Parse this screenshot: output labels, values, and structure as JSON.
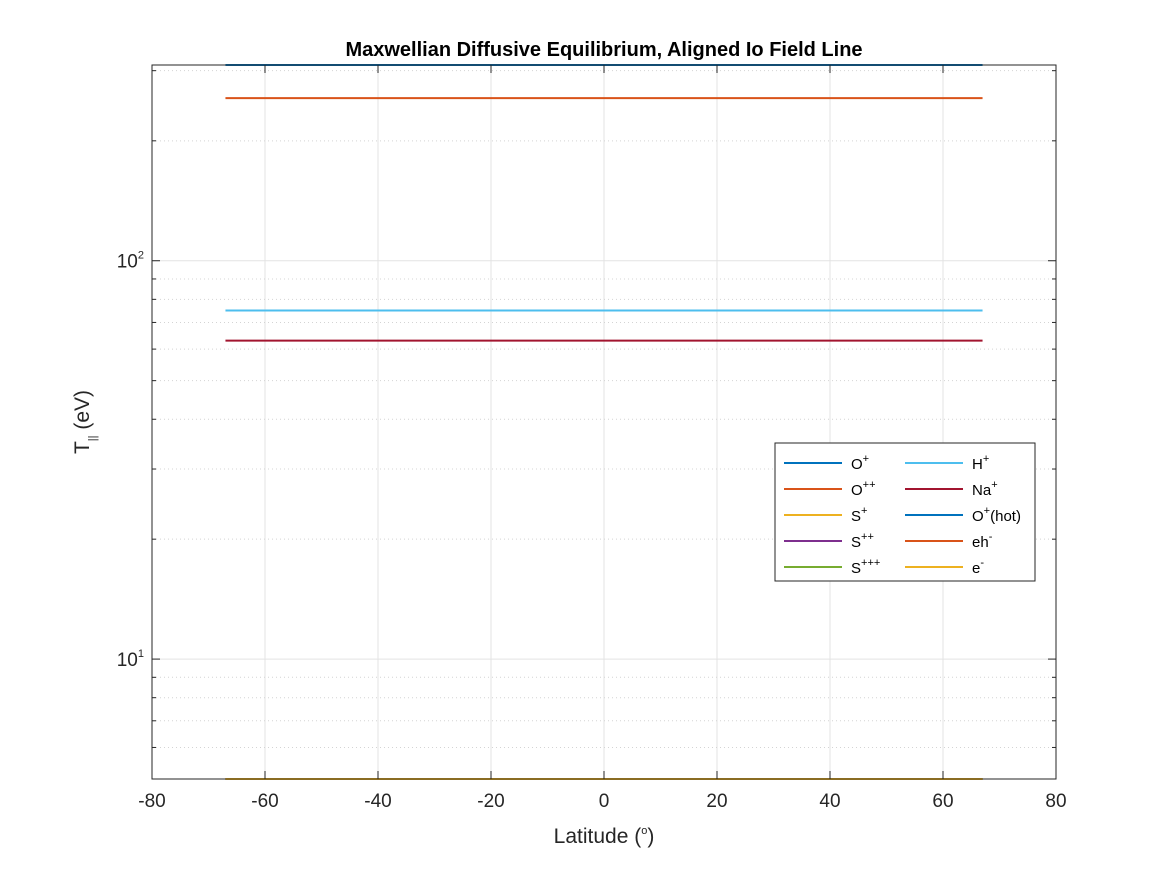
{
  "chart_data": {
    "type": "line",
    "title": "Maxwellian Diffusive Equilibrium, Aligned Io Field Line",
    "xlabel": "Latitude (",
    "xlabel_sup": "o",
    "xlabel_tail": ")",
    "ylabel": "T",
    "ylabel_sub": "||",
    "ylabel_tail": " (eV)",
    "xlim": [
      -80,
      80
    ],
    "ylim": [
      5,
      310
    ],
    "yscale": "log",
    "grid": true,
    "legend_position": "right",
    "xticks": [
      -80,
      -60,
      -40,
      -20,
      0,
      20,
      40,
      60,
      80
    ],
    "xtick_labels": [
      "-80",
      "-60",
      "-40",
      "-20",
      "0",
      "20",
      "40",
      "60",
      "80"
    ],
    "yticks_major": [
      {
        "value": 10,
        "base": "10",
        "exp": "1"
      },
      {
        "value": 100,
        "base": "10",
        "exp": "2"
      }
    ],
    "x": [
      -67,
      67
    ],
    "series": [
      {
        "name": "O",
        "sup": "+",
        "color": "#0072BD",
        "values": [
          5,
          5
        ]
      },
      {
        "name": "O",
        "sup": "++",
        "color": "#D95319",
        "values": [
          5,
          5
        ]
      },
      {
        "name": "S",
        "sup": "+",
        "color": "#EDB120",
        "values": [
          5,
          5
        ]
      },
      {
        "name": "S",
        "sup": "++",
        "color": "#7E2F8E",
        "values": [
          5,
          5
        ]
      },
      {
        "name": "S",
        "sup": "+++",
        "color": "#77AC30",
        "values": [
          5,
          5
        ]
      },
      {
        "name": "H",
        "sup": "+",
        "color": "#4DBEEE",
        "values": [
          75,
          75
        ]
      },
      {
        "name": "Na",
        "sup": "+",
        "color": "#A2142F",
        "values": [
          63,
          63
        ]
      },
      {
        "name": "O",
        "sup": "+",
        "tail": "(hot)",
        "color": "#0072BD",
        "values": [
          310,
          310
        ]
      },
      {
        "name": "eh",
        "sup": "-",
        "color": "#D95319",
        "values": [
          256,
          256
        ]
      },
      {
        "name": "e",
        "sup": "-",
        "color": "#EDB120",
        "values": [
          5,
          5
        ]
      }
    ]
  }
}
